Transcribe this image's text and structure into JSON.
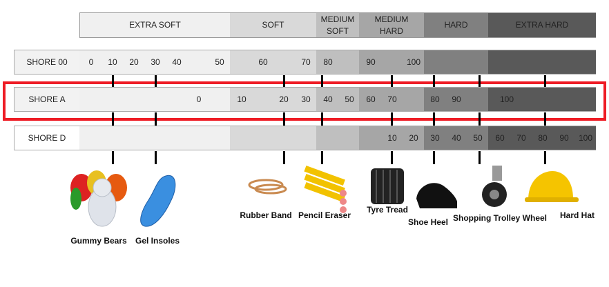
{
  "categories": [
    {
      "label": "EXTRA SOFT",
      "color": "#f0f0f0"
    },
    {
      "label": "SOFT",
      "color": "#d9d9d9"
    },
    {
      "label": "MEDIUM SOFT",
      "color": "#bfbfbf"
    },
    {
      "label": "MEDIUM HARD",
      "color": "#a6a6a6"
    },
    {
      "label": "HARD",
      "color": "#808080"
    },
    {
      "label": "EXTRA HARD",
      "color": "#595959"
    }
  ],
  "scales": [
    {
      "label": "SHORE 00",
      "values": [
        "0",
        "10",
        "20",
        "30",
        "40",
        "50",
        "60",
        "70",
        "80",
        "90",
        "100"
      ]
    },
    {
      "label": "SHORE A",
      "values": [
        "0",
        "10",
        "20",
        "30",
        "40",
        "50",
        "60",
        "70",
        "80",
        "90",
        "100"
      ]
    },
    {
      "label": "SHORE D",
      "values": [
        "10",
        "20",
        "30",
        "40",
        "50",
        "60",
        "70",
        "80",
        "90",
        "100"
      ]
    }
  ],
  "highlight_color": "#ee1c25",
  "examples": [
    "Gummy Bears",
    "Gel Insoles",
    "Rubber Band",
    "Pencil Eraser",
    "Tyre Tread",
    "Shoe Heel",
    "Shopping Trolley Wheel",
    "Hard Hat"
  ]
}
